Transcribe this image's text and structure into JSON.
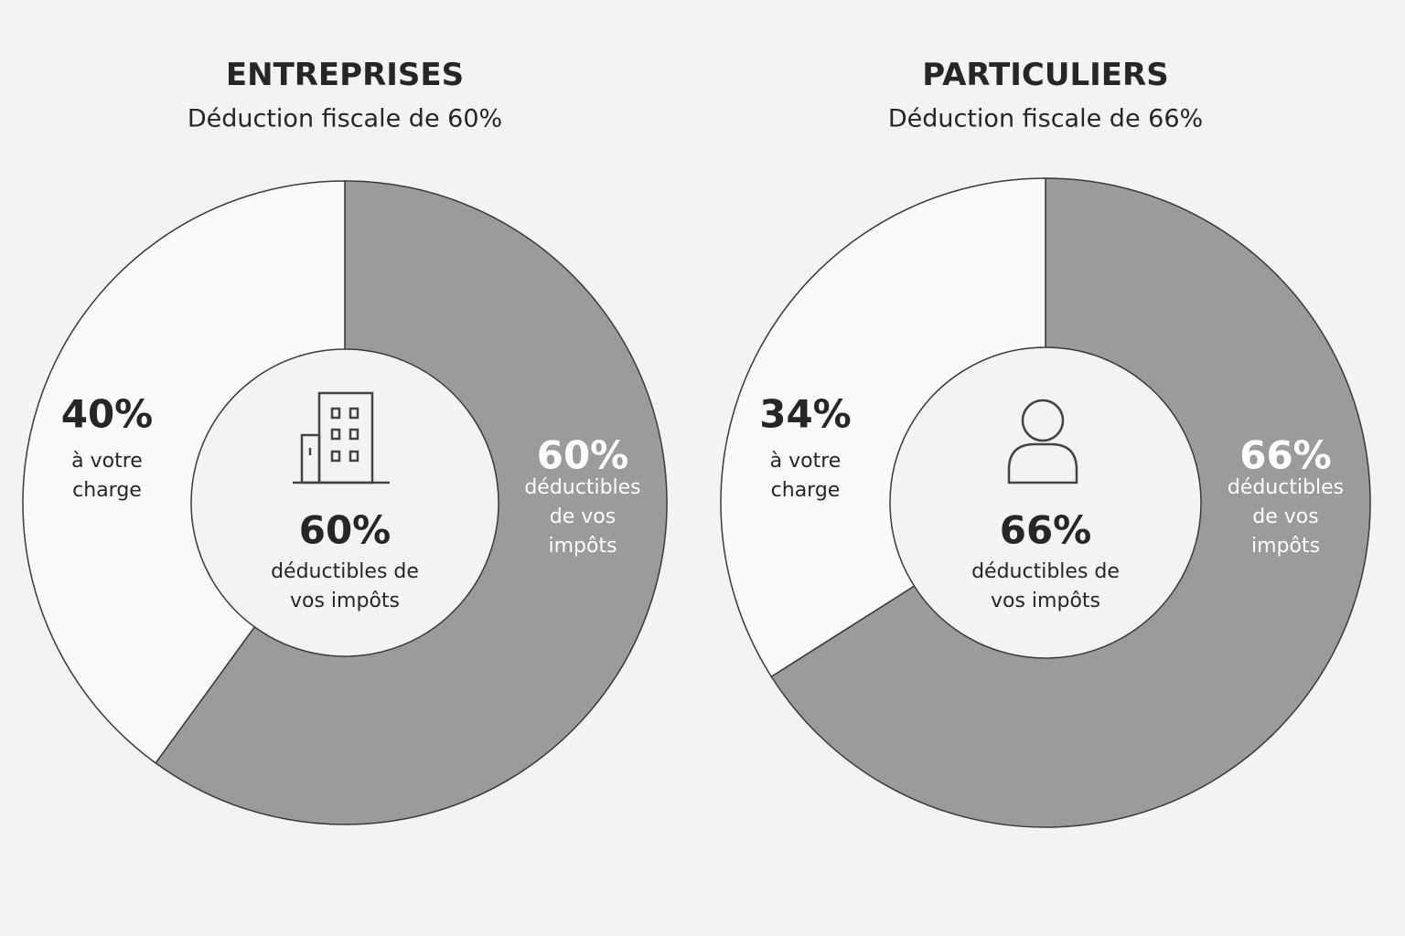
{
  "chart_data": [
    {
      "type": "donut",
      "title": "ENTREPRISES",
      "subtitle": "Déduction fiscale de 60%",
      "categories": [
        "déductibles de vos impôts",
        "à votre charge"
      ],
      "values": [
        60,
        40
      ],
      "value_labels": [
        "60%",
        "40%"
      ],
      "colors": [
        "#9a9b9d",
        "#fafafa"
      ]
    },
    {
      "type": "donut",
      "title": "PARTICULIERS",
      "subtitle": "Déduction fiscale de 66%",
      "categories": [
        "déductibles de vos impôts",
        "à votre charge"
      ],
      "values": [
        66,
        34
      ],
      "value_labels": [
        "66%",
        "34%"
      ],
      "colors": [
        "#9a9b9d",
        "#fafafa"
      ]
    }
  ]
}
